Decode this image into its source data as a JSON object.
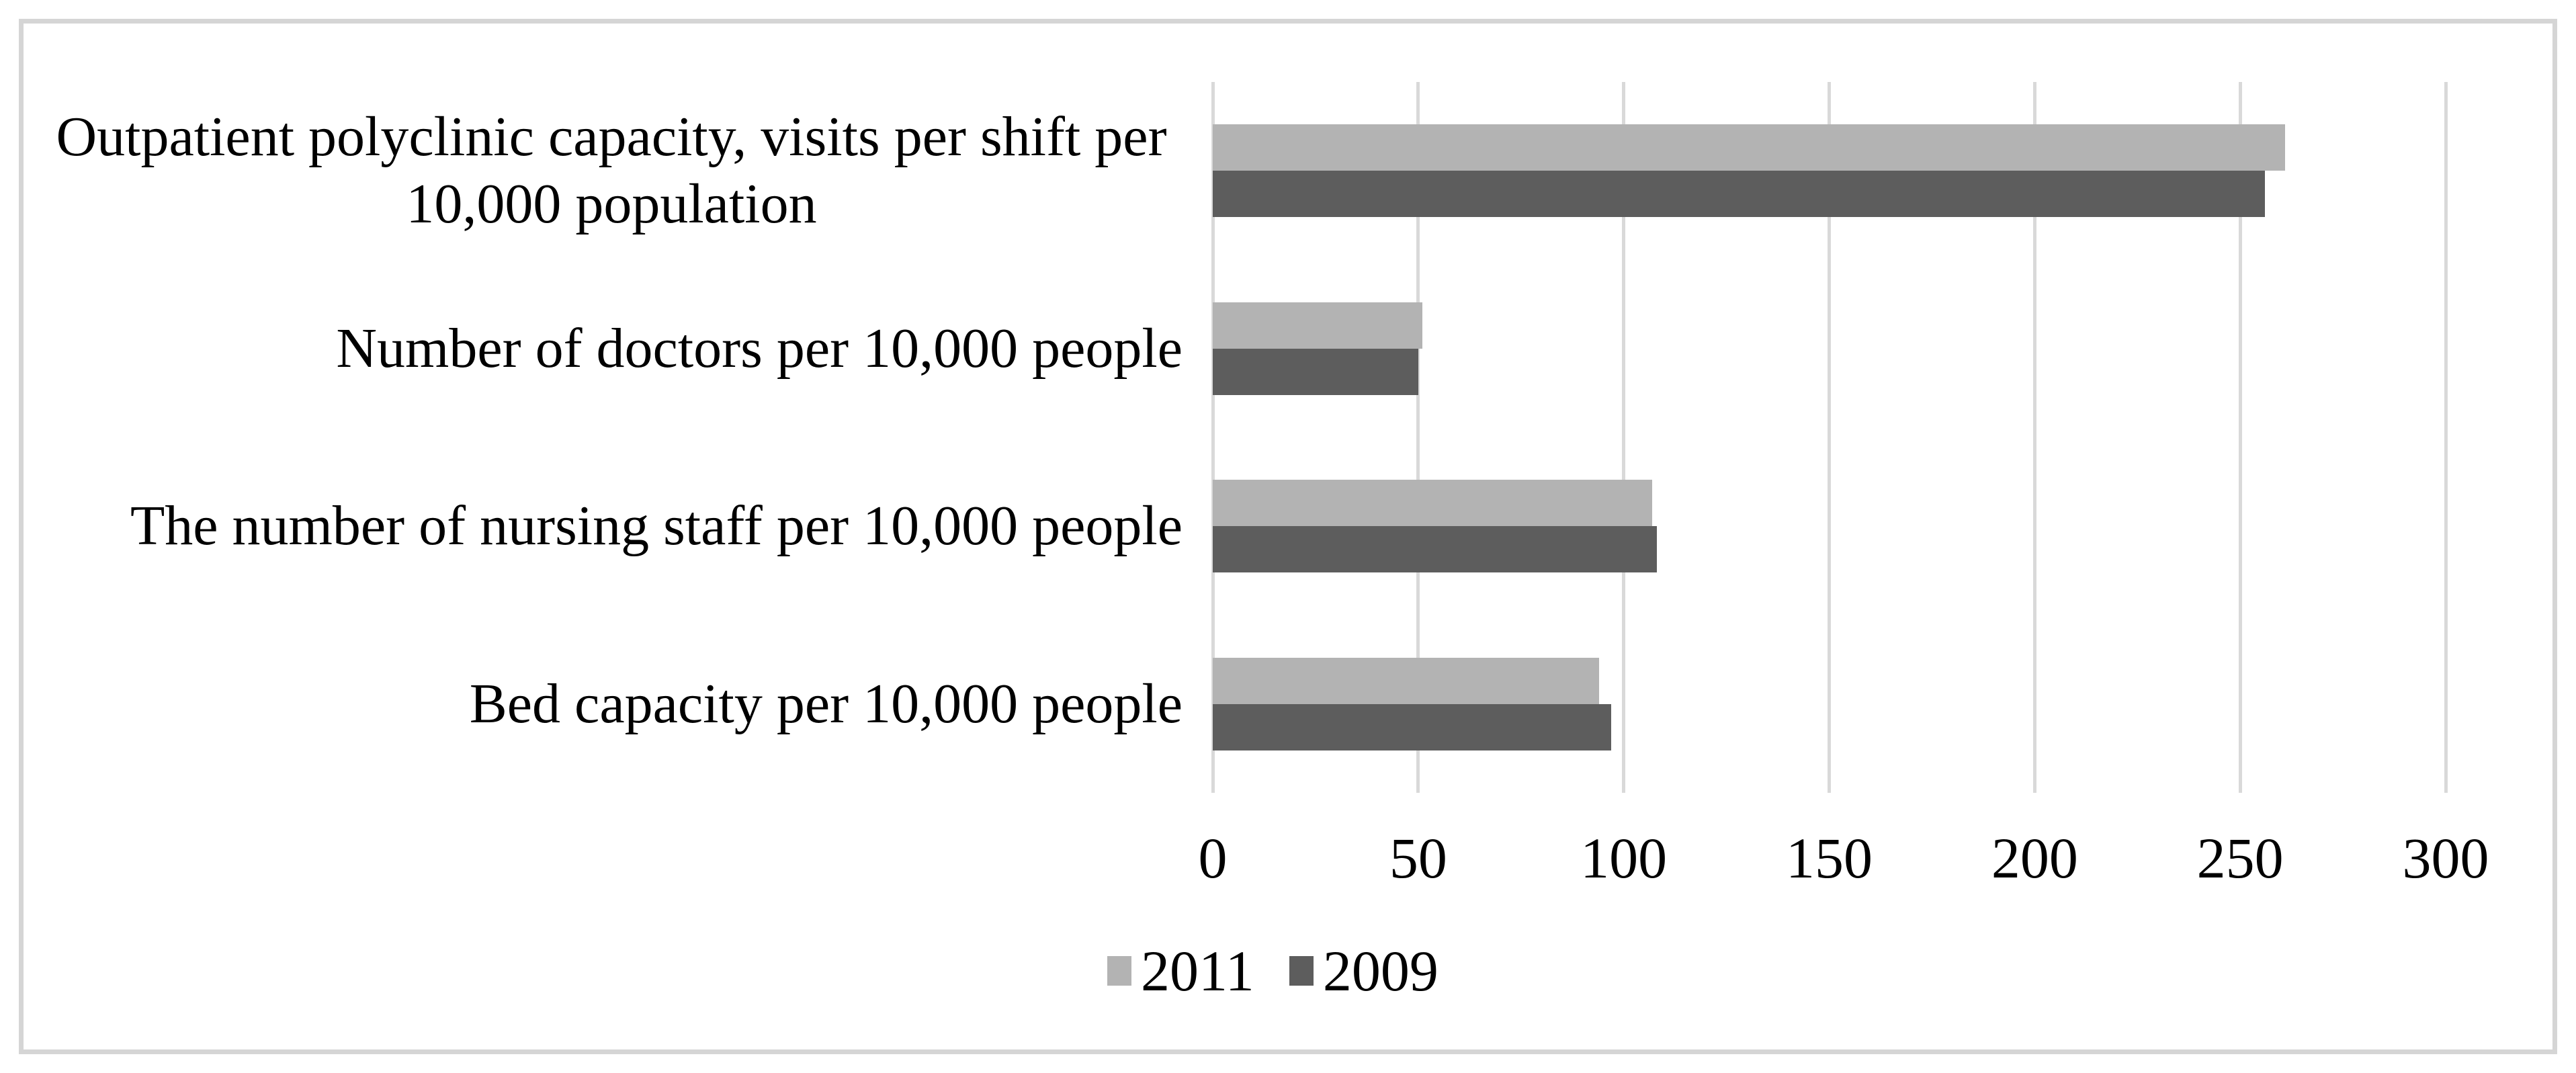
{
  "chart_data": {
    "type": "bar",
    "orientation": "horizontal",
    "title": "",
    "xlabel": "",
    "ylabel": "",
    "categories": [
      "Outpatient polyclinic capacity, visits per shift per 10,000 population",
      "Number of doctors per 10,000 people",
      "The number of nursing staff per 10,000 people",
      "Bed capacity per 10,000 people"
    ],
    "series": [
      {
        "name": "2011",
        "color": "#b3b3b3",
        "values": [
          261,
          51,
          107,
          94
        ]
      },
      {
        "name": "2009",
        "color": "#5d5d5d",
        "values": [
          256,
          50,
          108,
          97
        ]
      }
    ],
    "xlim": [
      0,
      300
    ],
    "xticks": [
      0,
      50,
      100,
      150,
      200,
      250,
      300
    ],
    "grid": true,
    "gridline_color": "#d9d9d9",
    "legend_position": "bottom",
    "legend_order": [
      "2011",
      "2009"
    ]
  },
  "frame": {
    "border_color": "#d5d5d5",
    "background": "#ffffff"
  },
  "text_color": "#000000"
}
